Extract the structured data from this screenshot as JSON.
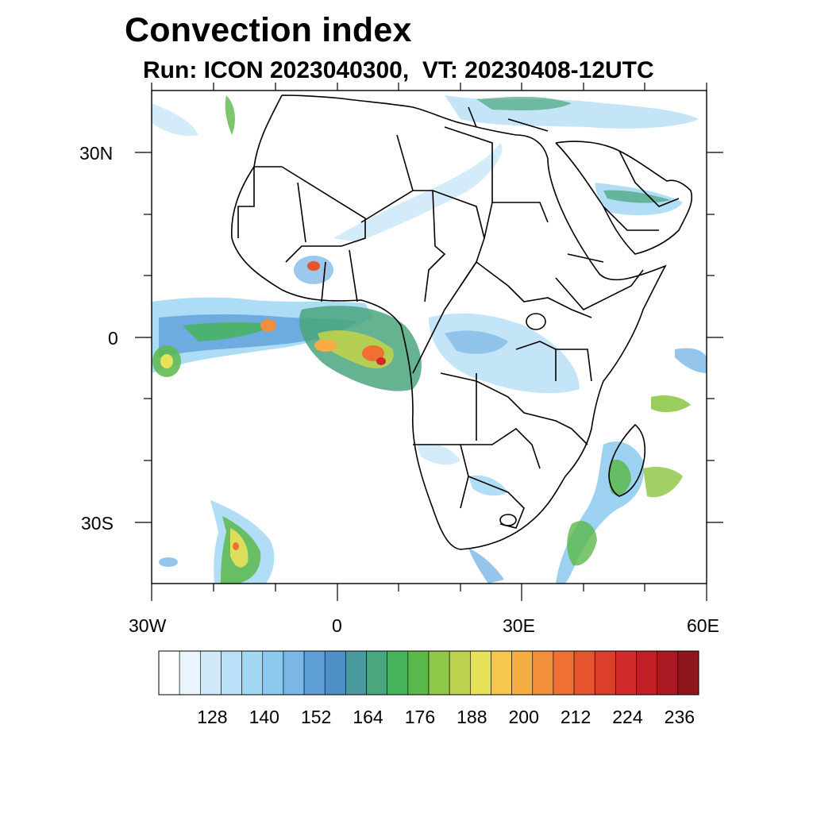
{
  "title": "Convection index",
  "subtitle": "Run: ICON 2023040300,  VT: 20230408-12UTC",
  "map": {
    "lon_range": [
      -30,
      60
    ],
    "lat_range": [
      -40,
      40
    ],
    "lat_labels": [
      {
        "lat": 30,
        "text": "30N"
      },
      {
        "lat": 0,
        "text": "0"
      },
      {
        "lat": -30,
        "text": "30S"
      }
    ],
    "lon_labels": [
      {
        "lon": -30,
        "text": "30W"
      },
      {
        "lon": 0,
        "text": "0"
      },
      {
        "lon": 30,
        "text": "30E"
      },
      {
        "lon": 60,
        "text": "60E"
      }
    ]
  },
  "colorbar": {
    "labels": [
      "128",
      "140",
      "152",
      "164",
      "176",
      "188",
      "200",
      "212",
      "224",
      "236"
    ],
    "colors": [
      "#ffffff",
      "#e9f5fc",
      "#cfe9f8",
      "#b8e0f6",
      "#a3d8f5",
      "#8cc9ee",
      "#7ab6e6",
      "#5f9fd8",
      "#4d8fc6",
      "#4b9aa0",
      "#4aa67c",
      "#47b35d",
      "#5bb84a",
      "#90c84a",
      "#bcd24e",
      "#e8e15a",
      "#f6c74c",
      "#f6ad43",
      "#f28f3b",
      "#ee7133",
      "#e6542d",
      "#dd3d2b",
      "#d22a2a",
      "#c21e27",
      "#ab1922",
      "#8f161d"
    ]
  }
}
